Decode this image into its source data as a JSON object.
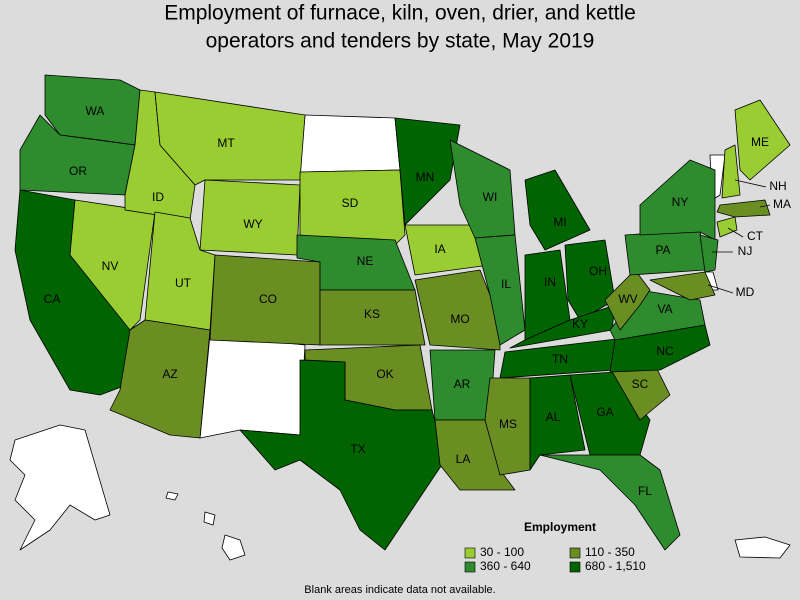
{
  "title": [
    "Employment of furnace, kiln, oven, drier, and kettle",
    "operators and tenders by state, May 2019"
  ],
  "legend": {
    "title": "Employment",
    "items": [
      {
        "label": "30 - 100",
        "color": "#9acd32"
      },
      {
        "label": "110 - 350",
        "color": "#6b8e23"
      },
      {
        "label": "360 - 640",
        "color": "#2e8b2e"
      },
      {
        "label": "680 - 1,510",
        "color": "#006400"
      }
    ]
  },
  "note": "Blank areas indicate data not available.",
  "states": [
    {
      "label": "WA",
      "color": "#2e8b2e"
    },
    {
      "label": "OR",
      "color": "#2e8b2e"
    },
    {
      "label": "CA",
      "color": "#006400"
    },
    {
      "label": "NV",
      "color": "#9acd32"
    },
    {
      "label": "ID",
      "color": "#9acd32"
    },
    {
      "label": "MT",
      "color": "#9acd32"
    },
    {
      "label": "WY",
      "color": "#9acd32"
    },
    {
      "label": "UT",
      "color": "#9acd32"
    },
    {
      "label": "CO",
      "color": "#6b8e23"
    },
    {
      "label": "AZ",
      "color": "#6b8e23"
    },
    {
      "label": "SD",
      "color": "#9acd32"
    },
    {
      "label": "NE",
      "color": "#2e8b2e"
    },
    {
      "label": "KS",
      "color": "#6b8e23"
    },
    {
      "label": "OK",
      "color": "#6b8e23"
    },
    {
      "label": "TX",
      "color": "#006400"
    },
    {
      "label": "MN",
      "color": "#006400"
    },
    {
      "label": "IA",
      "color": "#9acd32"
    },
    {
      "label": "MO",
      "color": "#6b8e23"
    },
    {
      "label": "AR",
      "color": "#2e8b2e"
    },
    {
      "label": "LA",
      "color": "#6b8e23"
    },
    {
      "label": "WI",
      "color": "#2e8b2e"
    },
    {
      "label": "IL",
      "color": "#2e8b2e"
    },
    {
      "label": "MI",
      "color": "#006400"
    },
    {
      "label": "IN",
      "color": "#006400"
    },
    {
      "label": "OH",
      "color": "#006400"
    },
    {
      "label": "KY",
      "color": "#006400"
    },
    {
      "label": "TN",
      "color": "#006400"
    },
    {
      "label": "MS",
      "color": "#6b8e23"
    },
    {
      "label": "AL",
      "color": "#006400"
    },
    {
      "label": "GA",
      "color": "#006400"
    },
    {
      "label": "FL",
      "color": "#2e8b2e"
    },
    {
      "label": "SC",
      "color": "#6b8e23"
    },
    {
      "label": "NC",
      "color": "#006400"
    },
    {
      "label": "VA",
      "color": "#2e8b2e"
    },
    {
      "label": "WV",
      "color": "#6b8e23"
    },
    {
      "label": "PA",
      "color": "#2e8b2e"
    },
    {
      "label": "NY",
      "color": "#2e8b2e"
    },
    {
      "label": "NJ",
      "color": "#2e8b2e"
    },
    {
      "label": "MD",
      "color": "#6b8e23"
    },
    {
      "label": "CT",
      "color": "#9acd32"
    },
    {
      "label": "MA",
      "color": "#6b8e23"
    },
    {
      "label": "NH",
      "color": "#9acd32"
    },
    {
      "label": "ME",
      "color": "#9acd32"
    }
  ]
}
